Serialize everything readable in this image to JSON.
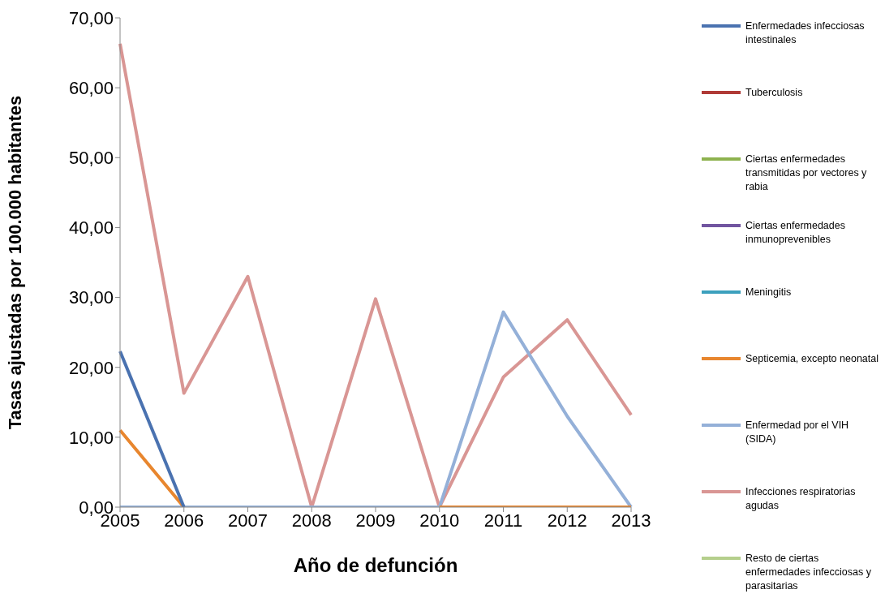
{
  "chart_data": {
    "type": "line",
    "xlabel": "Año de defunción",
    "ylabel": "Tasas ajustadas por 100.000 habitantes",
    "categories": [
      "2005",
      "2006",
      "2007",
      "2008",
      "2009",
      "2010",
      "2011",
      "2012",
      "2013"
    ],
    "ylim": [
      0,
      70
    ],
    "yticks": [
      {
        "value": 0,
        "label": "0,00"
      },
      {
        "value": 10,
        "label": "10,00"
      },
      {
        "value": 20,
        "label": "20,00"
      },
      {
        "value": 30,
        "label": "30,00"
      },
      {
        "value": 40,
        "label": "40,00"
      },
      {
        "value": 50,
        "label": "50,00"
      },
      {
        "value": 60,
        "label": "60,00"
      },
      {
        "value": 70,
        "label": "70,00"
      }
    ],
    "grid": false,
    "legend": "right",
    "marker": "none",
    "line_style": "solid",
    "series": [
      {
        "name": "Enfermedades infecciosas intestinales",
        "color": "#4a72b0",
        "values": [
          22.3,
          0,
          null,
          null,
          null,
          null,
          null,
          null,
          null
        ]
      },
      {
        "name": "Tuberculosis",
        "color": "#b03a36",
        "values": [
          null,
          null,
          null,
          null,
          null,
          null,
          null,
          null,
          null
        ]
      },
      {
        "name": "Ciertas enfermedades transmitidas por vectores y rabia",
        "color": "#8db24e",
        "values": [
          null,
          null,
          null,
          null,
          null,
          null,
          null,
          null,
          null
        ]
      },
      {
        "name": "Ciertas enfermedades inmunoprevenibles",
        "color": "#7155a0",
        "values": [
          null,
          null,
          null,
          null,
          null,
          null,
          null,
          null,
          null
        ]
      },
      {
        "name": "Meningitis",
        "color": "#3ca0bd",
        "values": [
          null,
          null,
          null,
          null,
          null,
          null,
          null,
          null,
          null
        ]
      },
      {
        "name": "Septicemia, excepto neonatal",
        "color": "#e8862e",
        "values": [
          11.0,
          0,
          null,
          null,
          null,
          0,
          0,
          0,
          0
        ]
      },
      {
        "name": "Enfermedad por el VIH (SIDA)",
        "color": "#94b0d8",
        "values": [
          0,
          0,
          0,
          0,
          0,
          0,
          27.9,
          13.0,
          0
        ]
      },
      {
        "name": "Infecciones respiratorias agudas",
        "color": "#d99694",
        "values": [
          66.3,
          16.3,
          33.0,
          0,
          29.8,
          0,
          18.6,
          26.8,
          13.2
        ]
      },
      {
        "name": "Resto de ciertas enfermedades infecciosas y parasitarias",
        "color": "#b5cf8c",
        "values": [
          null,
          null,
          null,
          null,
          null,
          null,
          null,
          null,
          null
        ]
      }
    ]
  }
}
